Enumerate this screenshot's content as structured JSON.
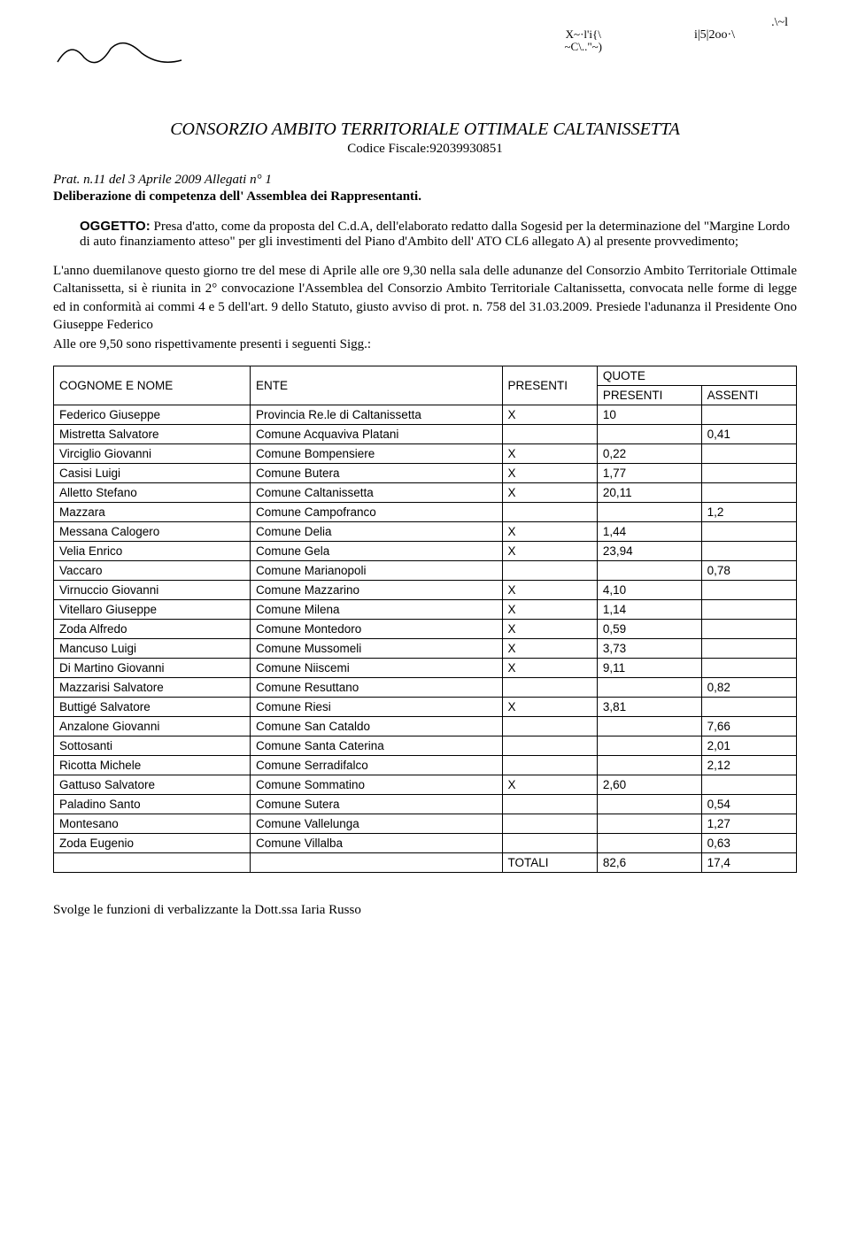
{
  "scribbles": {
    "topright1": ".\\~l",
    "topright2a": "X~·l'i{\\",
    "topright2b": "~C\\..\"~)",
    "topright3": "i|5|2oo·\\"
  },
  "header": {
    "title": "CONSORZIO AMBITO TERRITORIALE OTTIMALE CALTANISSETTA",
    "codice": "Codice Fiscale:92039930851"
  },
  "prat": "Prat. n.11 del 3 Aprile 2009 Allegati n° 1",
  "deliberazione": "Deliberazione di competenza dell' Assemblea dei Rappresentanti.",
  "oggetto": {
    "label": "OGGETTO:",
    "text": " Presa d'atto, come da proposta del C.d.A, dell'elaborato redatto dalla Sogesid per la determinazione del \"Margine Lordo di auto finanziamento atteso\" per gli investimenti del Piano d'Ambito dell' ATO CL6 allegato A) al presente provvedimento;"
  },
  "body_para": "L'anno duemilanove questo giorno tre del mese di Aprile alle ore 9,30 nella sala delle adunanze del Consorzio Ambito Territoriale Ottimale Caltanissetta, si è riunita in 2° convocazione l'Assemblea del Consorzio Ambito Territoriale Caltanissetta, convocata nelle forme di legge ed in conformità ai commi 4 e 5 dell'art. 9 dello Statuto, giusto avviso di prot. n. 758 del 31.03.2009. Presiede l'adunanza il Presidente Ono Giuseppe Federico",
  "body_para2": "Alle ore 9,50 sono rispettivamente presenti i seguenti Sigg.:",
  "table": {
    "head": {
      "cognome": "COGNOME E NOME",
      "ente": "ENTE",
      "presenti": "PRESENTI",
      "quote": "QUOTE",
      "presenti2": "PRESENTI",
      "assenti": "ASSENTI"
    },
    "rows": [
      {
        "nome": "Federico Giuseppe",
        "ente": "Provincia Re.le di Caltanissetta",
        "pres": "X",
        "qp": "10",
        "qa": ""
      },
      {
        "nome": "Mistretta Salvatore",
        "ente": "Comune Acquaviva Platani",
        "pres": "",
        "qp": "",
        "qa": "0,41"
      },
      {
        "nome": "Virciglio Giovanni",
        "ente": "Comune Bompensiere",
        "pres": "X",
        "qp": "0,22",
        "qa": ""
      },
      {
        "nome": "Casisi Luigi",
        "ente": "Comune Butera",
        "pres": "X",
        "qp": "1,77",
        "qa": ""
      },
      {
        "nome": "Alletto Stefano",
        "ente": "Comune Caltanissetta",
        "pres": "X",
        "qp": "20,11",
        "qa": ""
      },
      {
        "nome": "Mazzara",
        "ente": "Comune Campofranco",
        "pres": "",
        "qp": "",
        "qa": "1,2"
      },
      {
        "nome": "Messana Calogero",
        "ente": "Comune Delia",
        "pres": "X",
        "qp": "1,44",
        "qa": ""
      },
      {
        "nome": "Velia Enrico",
        "ente": "Comune Gela",
        "pres": "X",
        "qp": "23,94",
        "qa": ""
      },
      {
        "nome": "Vaccaro",
        "ente": "Comune Marianopoli",
        "pres": "",
        "qp": "",
        "qa": "0,78"
      },
      {
        "nome": "Virnuccio Giovanni",
        "ente": "Comune Mazzarino",
        "pres": "X",
        "qp": "4,10",
        "qa": ""
      },
      {
        "nome": "Vitellaro Giuseppe",
        "ente": "Comune Milena",
        "pres": "X",
        "qp": "1,14",
        "qa": ""
      },
      {
        "nome": "Zoda Alfredo",
        "ente": "Comune Montedoro",
        "pres": "X",
        "qp": "0,59",
        "qa": ""
      },
      {
        "nome": "Mancuso Luigi",
        "ente": "Comune Mussomeli",
        "pres": "X",
        "qp": "3,73",
        "qa": ""
      },
      {
        "nome": "Di Martino Giovanni",
        "ente": "Comune Niiscemi",
        "pres": "X",
        "qp": "9,11",
        "qa": ""
      },
      {
        "nome": "Mazzarisi Salvatore",
        "ente": "Comune Resuttano",
        "pres": "",
        "qp": "",
        "qa": "0,82"
      },
      {
        "nome": "Buttigé Salvatore",
        "ente": "Comune Riesi",
        "pres": "X",
        "qp": "3,81",
        "qa": ""
      },
      {
        "nome": "Anzalone Giovanni",
        "ente": "Comune San Cataldo",
        "pres": "",
        "qp": "",
        "qa": "7,66"
      },
      {
        "nome": "Sottosanti",
        "ente": "Comune Santa Caterina",
        "pres": "",
        "qp": "",
        "qa": "2,01"
      },
      {
        "nome": "Ricotta Michele",
        "ente": "Comune Serradifalco",
        "pres": "",
        "qp": "",
        "qa": "2,12"
      },
      {
        "nome": "Gattuso Salvatore",
        "ente": "Comune Sommatino",
        "pres": "X",
        "qp": "2,60",
        "qa": ""
      },
      {
        "nome": "Paladino Santo",
        "ente": "Comune Sutera",
        "pres": "",
        "qp": "",
        "qa": "0,54"
      },
      {
        "nome": "Montesano",
        "ente": "Comune Vallelunga",
        "pres": "",
        "qp": "",
        "qa": "1,27"
      },
      {
        "nome": "Zoda Eugenio",
        "ente": "Comune Villalba",
        "pres": "",
        "qp": "",
        "qa": "0,63"
      }
    ],
    "totals": {
      "label": "TOTALI",
      "qp": "82,6",
      "qa": "17,4"
    }
  },
  "footer": "Svolge le funzioni di verbalizzante la Dott.ssa Iaria Russo"
}
